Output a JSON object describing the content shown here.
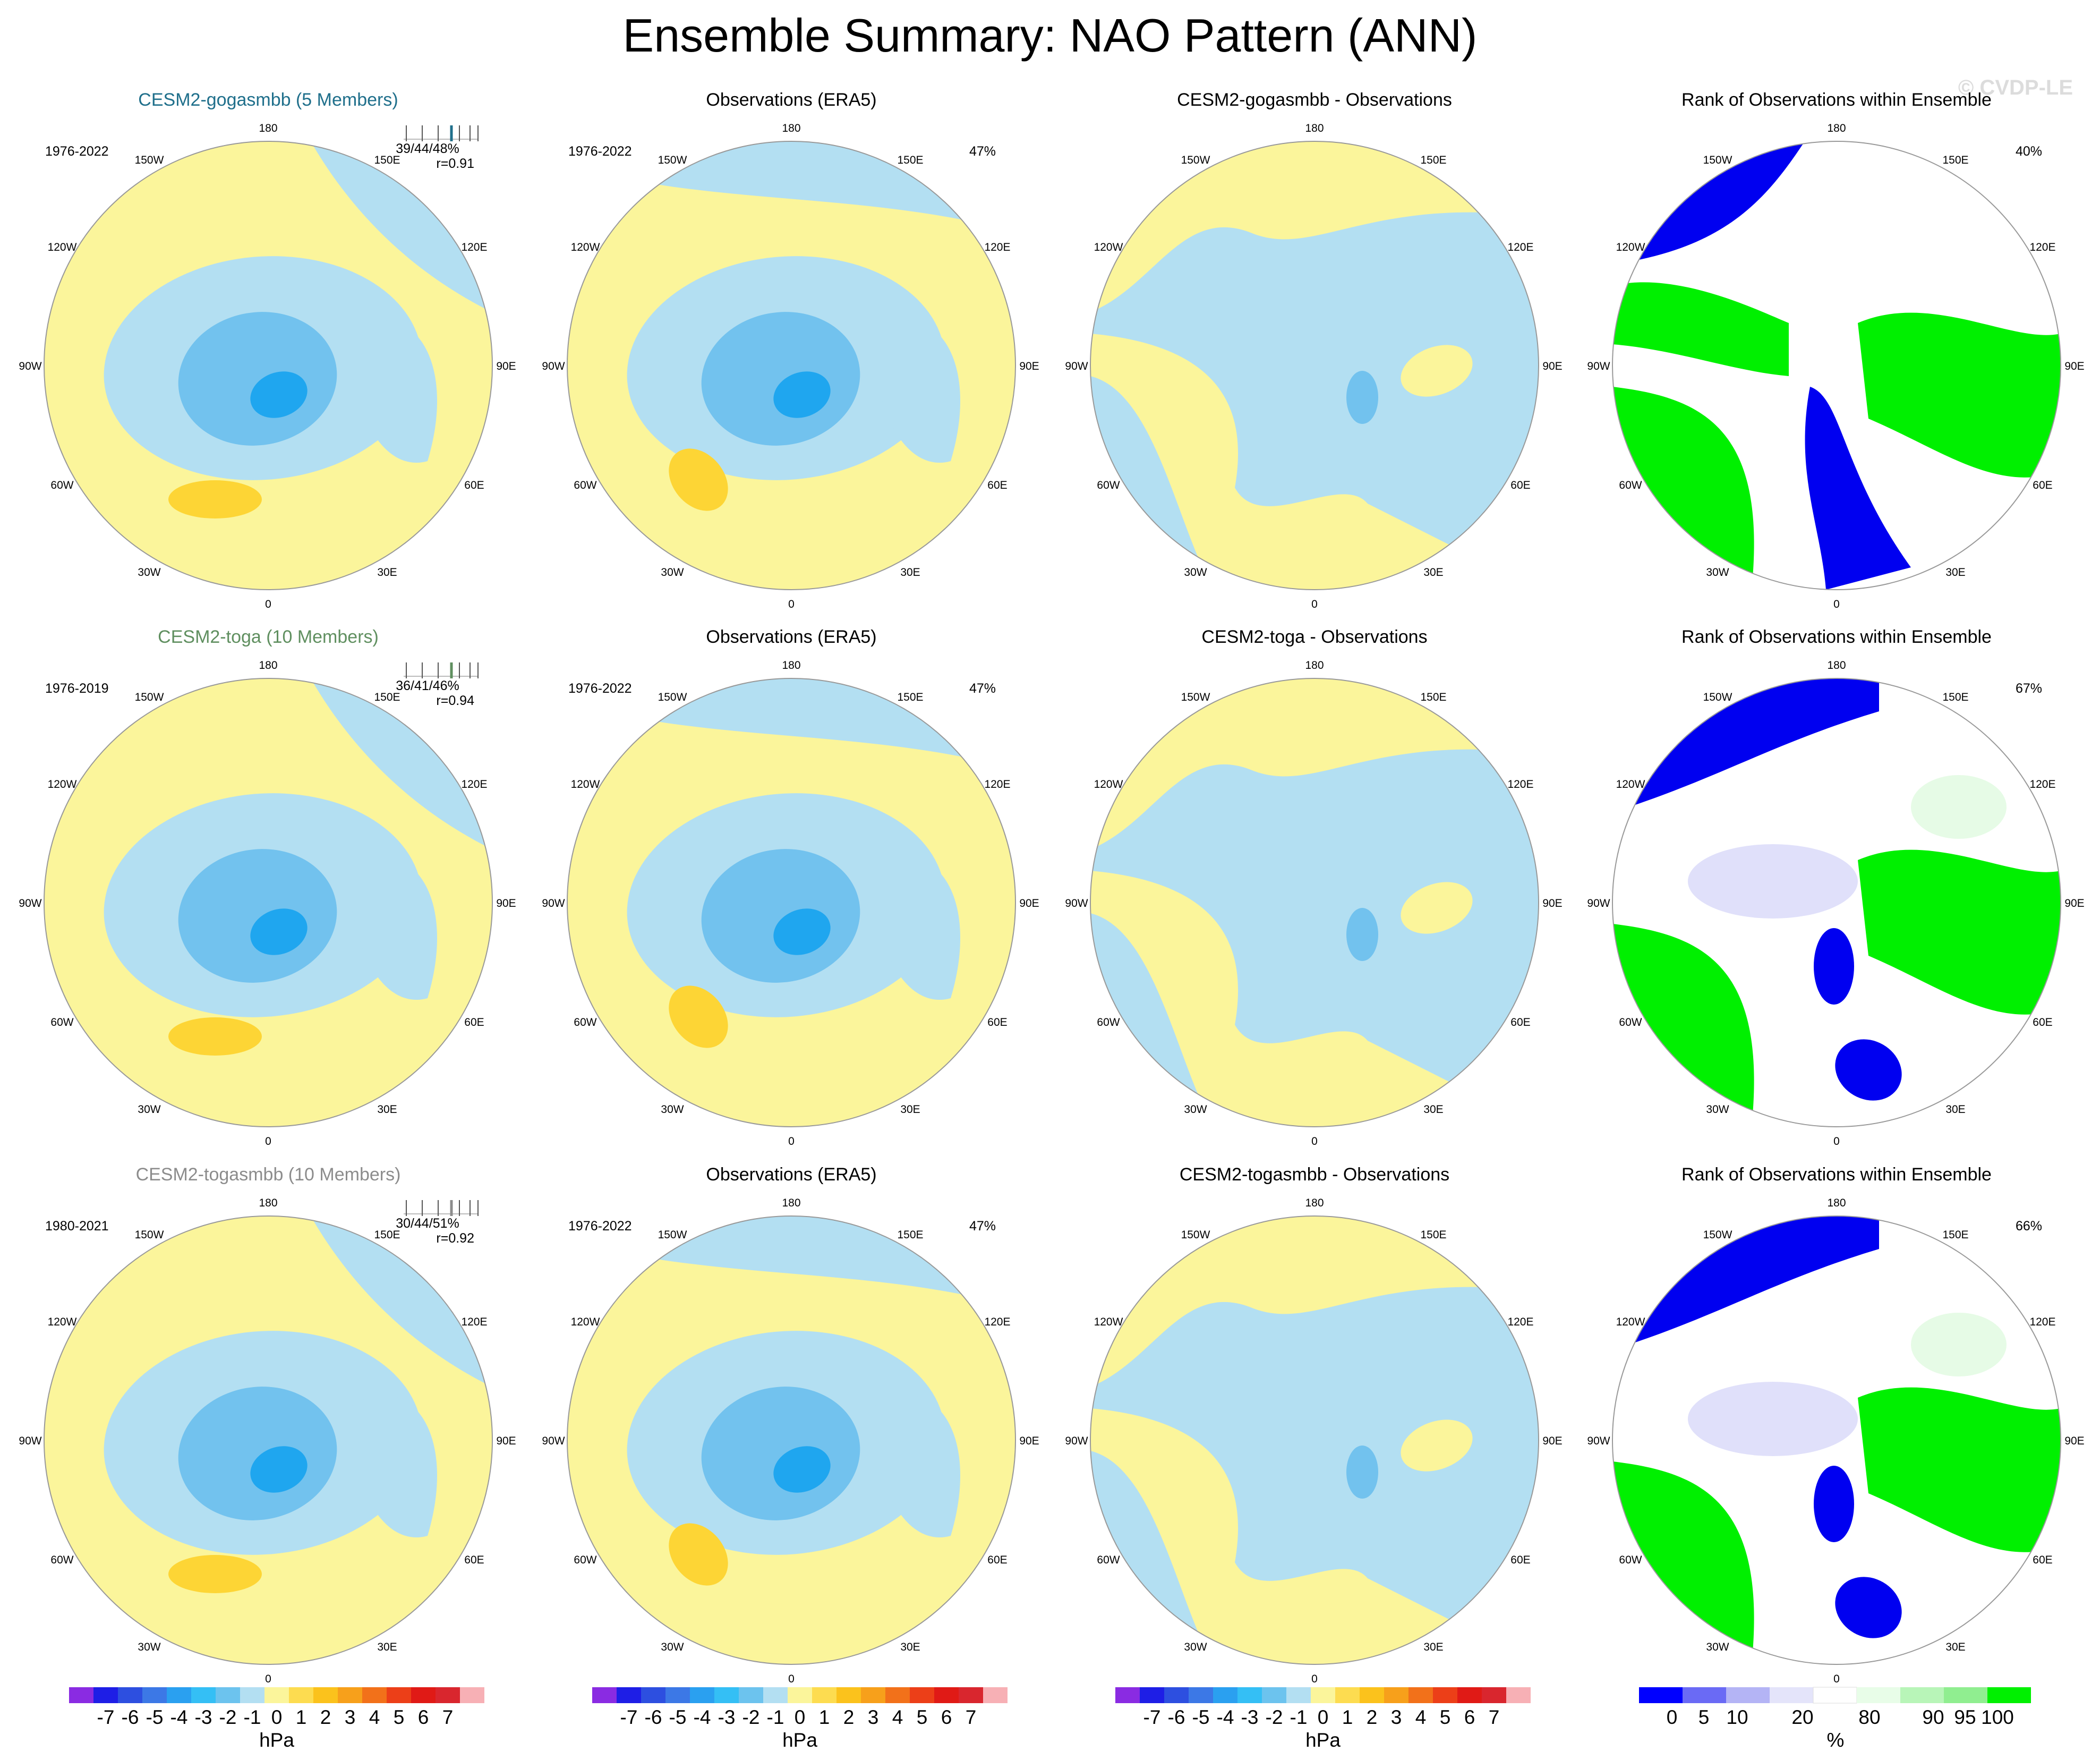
{
  "title": "Ensemble Summary: NAO Pattern (ANN)",
  "watermark": "© CVDP-LE",
  "lon_labels": [
    "180",
    "150E",
    "120E",
    "90E",
    "60E",
    "30E",
    "0",
    "30W",
    "60W",
    "90W",
    "120W",
    "150W"
  ],
  "rows": [
    {
      "model_title": "CESM2-gogasmbb (5 Members)",
      "model_color": "#1f6f8b",
      "model_period": "1976-2022",
      "model_stats_line1": "39/44/48%",
      "model_stats_line2": "r=0.91",
      "obs_title": "Observations (ERA5)",
      "obs_period": "1976-2022",
      "obs_pct": "47%",
      "diff_title": "CESM2-gogasmbb - Observations",
      "rank_title": "Rank of Observations within Ensemble",
      "rank_pct": "40%"
    },
    {
      "model_title": "CESM2-toga (10 Members)",
      "model_color": "#5f8f5f",
      "model_period": "1976-2019",
      "model_stats_line1": "36/41/46%",
      "model_stats_line2": "r=0.94",
      "obs_title": "Observations (ERA5)",
      "obs_period": "1976-2022",
      "obs_pct": "47%",
      "diff_title": "CESM2-toga - Observations",
      "rank_title": "Rank of Observations within Ensemble",
      "rank_pct": "67%"
    },
    {
      "model_title": "CESM2-togasmbb (10 Members)",
      "model_color": "#8c8c8c",
      "model_period": "1980-2021",
      "model_stats_line1": "30/44/51%",
      "model_stats_line2": "r=0.92",
      "obs_title": "Observations (ERA5)",
      "obs_period": "1976-2022",
      "obs_pct": "47%",
      "diff_title": "CESM2-togasmbb - Observations",
      "rank_title": "Rank of Observations within Ensemble",
      "rank_pct": "66%"
    }
  ],
  "colorbar_hpa": {
    "colors": [
      "#8a2be2",
      "#1e1ee6",
      "#2d4fe0",
      "#3c78e6",
      "#2aa0f0",
      "#34bff5",
      "#6cc3ee",
      "#b3dff2",
      "#fbf59b",
      "#fddc50",
      "#fbc21c",
      "#f7a01b",
      "#f2711a",
      "#ec3f18",
      "#e01a16",
      "#d9262e",
      "#f7b0b5"
    ],
    "tick_labels": [
      "-7",
      "-6",
      "-5",
      "-4",
      "-3",
      "-2",
      "-1",
      "0",
      "1",
      "2",
      "3",
      "4",
      "5",
      "6",
      "7"
    ],
    "unit": "hPa"
  },
  "colorbar_rank": {
    "colors": [
      "#0000ff",
      "#6a6af5",
      "#b4b4f5",
      "#e4e4fa",
      "#ffffff",
      "#e8fde8",
      "#b8f5b8",
      "#90ee90",
      "#00f000"
    ],
    "tick_labels": [
      "0",
      "5",
      "10",
      "20",
      "80",
      "90",
      "95",
      "100"
    ],
    "unit": "%"
  },
  "colors": {
    "yellow": "#fbf59b",
    "lightblue": "#b3dff2",
    "medblue": "#72c2ee",
    "deepblue": "#1fa6ef",
    "orange": "#fdd535",
    "green": "#00f000",
    "blue": "#0000f0",
    "lavender": "#e0e0fa",
    "palegreen": "#e6fbe6"
  }
}
